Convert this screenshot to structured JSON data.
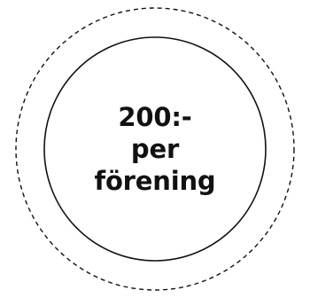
{
  "badge": {
    "price": "200:-",
    "line2": "per",
    "line3": "förening",
    "colors": {
      "stroke": "#111111",
      "text": "#111111",
      "background": "#ffffff"
    }
  }
}
